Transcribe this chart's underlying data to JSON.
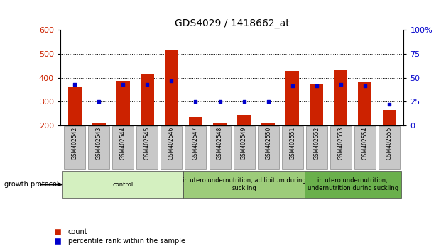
{
  "title": "GDS4029 / 1418662_at",
  "samples": [
    "GSM402542",
    "GSM402543",
    "GSM402544",
    "GSM402545",
    "GSM402546",
    "GSM402547",
    "GSM402548",
    "GSM402549",
    "GSM402550",
    "GSM402551",
    "GSM402552",
    "GSM402553",
    "GSM402554",
    "GSM402555"
  ],
  "counts": [
    360,
    212,
    388,
    415,
    518,
    235,
    212,
    246,
    212,
    430,
    372,
    432,
    385,
    265
  ],
  "percentile_rank": [
    43,
    25,
    43,
    43,
    47,
    25,
    25,
    25,
    25,
    42,
    42,
    43,
    42,
    22
  ],
  "bar_color": "#cc2200",
  "dot_color": "#0000cc",
  "ylim_left": [
    200,
    600
  ],
  "ylim_right": [
    0,
    100
  ],
  "yticks_left": [
    200,
    300,
    400,
    500,
    600
  ],
  "yticks_right": [
    0,
    25,
    50,
    75,
    100
  ],
  "groups": [
    {
      "label": "control",
      "start": 0,
      "end": 5,
      "color": "#d4f0c0"
    },
    {
      "label": "in utero undernutrition, ad libitum during\nsuckling",
      "start": 5,
      "end": 10,
      "color": "#9dcc7a"
    },
    {
      "label": "in utero undernutrition,\nundernutrition during suckling",
      "start": 10,
      "end": 14,
      "color": "#6ab04c"
    }
  ],
  "growth_protocol_label": "growth protocol",
  "legend_count_label": "count",
  "legend_percentile_label": "percentile rank within the sample",
  "background_color": "#ffffff",
  "tick_label_color_left": "#cc2200",
  "tick_label_color_right": "#0000cc",
  "bar_width": 0.55,
  "bar_bottom": 200,
  "grid_lines": [
    300,
    400,
    500
  ],
  "sample_box_color": "#c8c8c8"
}
